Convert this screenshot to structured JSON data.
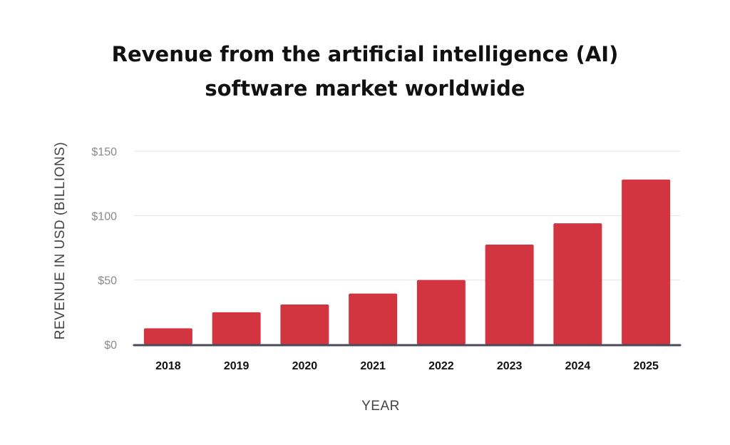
{
  "chart_data": {
    "type": "bar",
    "title_lines": [
      "Revenue from the artificial intelligence (AI)",
      "software market worldwide"
    ],
    "categories": [
      "2018",
      "2019",
      "2020",
      "2021",
      "2022",
      "2023",
      "2024",
      "2025"
    ],
    "values": [
      12.5,
      25,
      31,
      39.5,
      50,
      77.5,
      94,
      128
    ],
    "xlabel": "YEAR",
    "ylabel": "REVENUE IN USD (BILLIONS)",
    "ylim": [
      0,
      150
    ],
    "yticks": [
      0,
      50,
      100,
      150
    ],
    "ytick_labels": [
      "$0",
      "$50",
      "$100",
      "$150"
    ],
    "grid": true,
    "bar_color": "#d23440",
    "axis_color": "#4a4a5a",
    "grid_color": "#e4e4e4"
  }
}
